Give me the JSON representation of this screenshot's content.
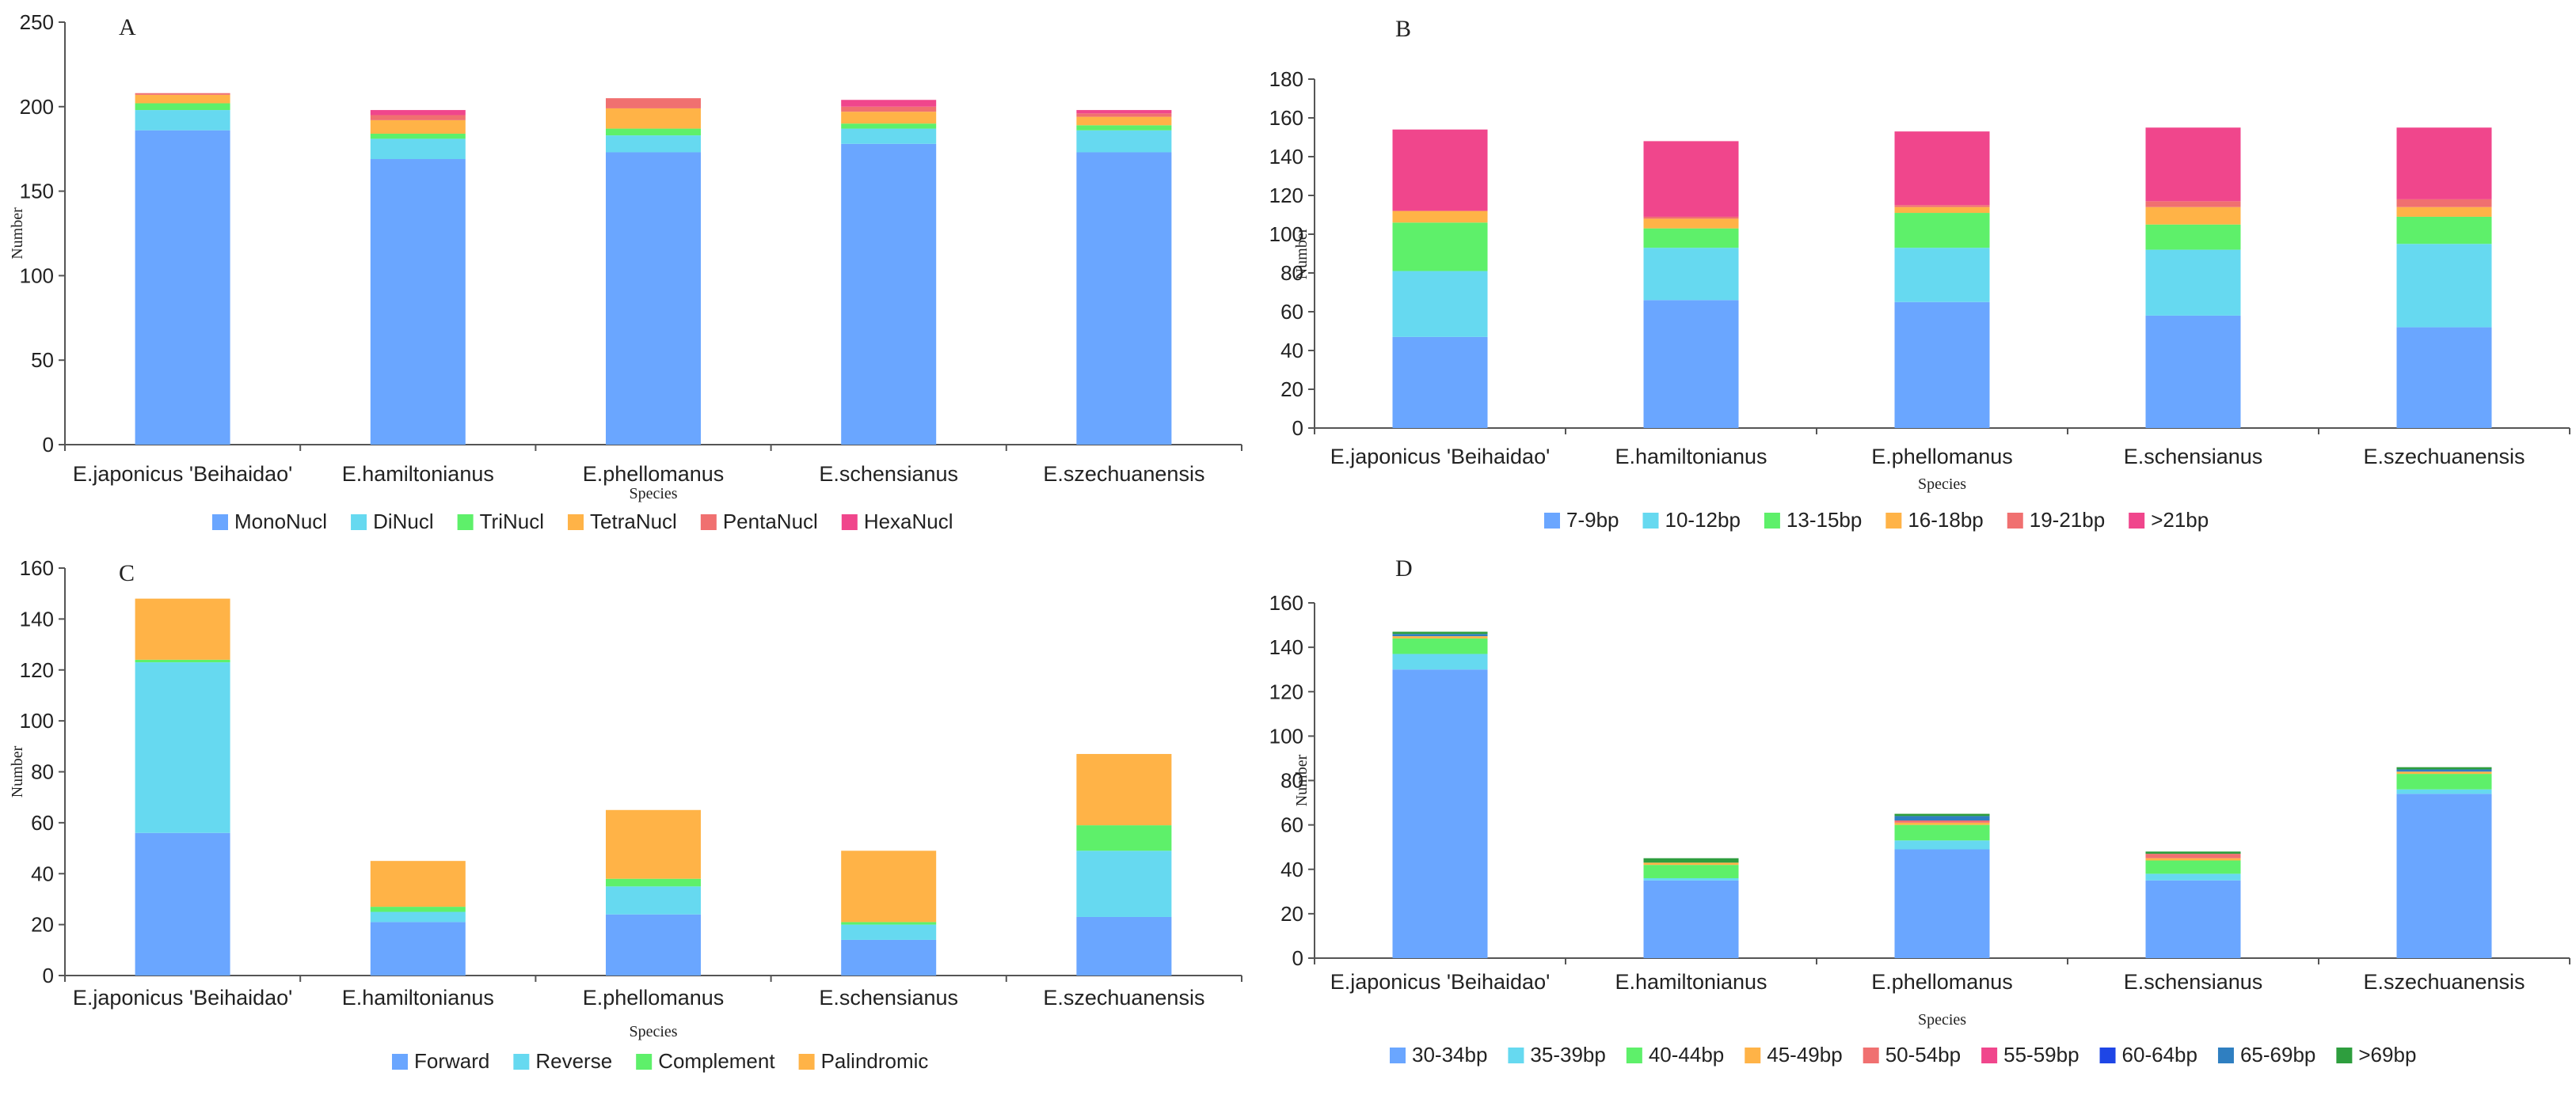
{
  "chart_data": [
    {
      "panel": "A",
      "type": "bar",
      "stacked": true,
      "title": "",
      "xlabel": "Species",
      "ylabel": "Number",
      "ylim": [
        0,
        250
      ],
      "yticks": [
        0,
        50,
        100,
        150,
        200,
        250
      ],
      "legend_position": "bottom",
      "categories": [
        "E.japonicus 'Beihaidao'",
        "E.hamiltonianus",
        "E.phellomanus",
        "E.schensianus",
        "E.szechuanensis"
      ],
      "series": [
        {
          "name": "MonoNucl",
          "color": "#6aa6ff",
          "values": [
            186,
            169,
            173,
            178,
            173
          ]
        },
        {
          "name": "DiNucl",
          "color": "#66d9f0",
          "values": [
            12,
            12,
            10,
            9,
            13
          ]
        },
        {
          "name": "TriNucl",
          "color": "#5ef06a",
          "values": [
            4,
            3,
            4,
            3,
            3
          ]
        },
        {
          "name": "TetraNucl",
          "color": "#ffb347",
          "values": [
            5,
            8,
            12,
            7,
            5
          ]
        },
        {
          "name": "PentaNucl",
          "color": "#f07070",
          "values": [
            1,
            3,
            6,
            3,
            2
          ]
        },
        {
          "name": "HexaNucl",
          "color": "#f0468c",
          "values": [
            0,
            3,
            0,
            4,
            2
          ]
        }
      ]
    },
    {
      "panel": "B",
      "type": "bar",
      "stacked": true,
      "title": "",
      "xlabel": "Species",
      "ylabel": "Number",
      "ylim": [
        0,
        180
      ],
      "yticks": [
        0,
        20,
        40,
        60,
        80,
        100,
        120,
        140,
        160,
        180
      ],
      "legend_position": "bottom",
      "categories": [
        "E.japonicus 'Beihaidao'",
        "E.hamiltonianus",
        "E.phellomanus",
        "E.schensianus",
        "E.szechuanensis"
      ],
      "series": [
        {
          "name": "7-9bp",
          "color": "#6aa6ff",
          "values": [
            47,
            66,
            65,
            58,
            52
          ]
        },
        {
          "name": "10-12bp",
          "color": "#66d9f0",
          "values": [
            34,
            27,
            28,
            34,
            43
          ]
        },
        {
          "name": "13-15bp",
          "color": "#5ef06a",
          "values": [
            25,
            10,
            18,
            13,
            14
          ]
        },
        {
          "name": "16-18bp",
          "color": "#ffb347",
          "values": [
            6,
            5,
            3,
            9,
            5
          ]
        },
        {
          "name": "19-21bp",
          "color": "#f07070",
          "values": [
            0,
            1,
            1,
            3,
            4
          ]
        },
        {
          "name": ">21bp",
          "color": "#f0468c",
          "values": [
            42,
            39,
            38,
            38,
            37
          ]
        }
      ]
    },
    {
      "panel": "C",
      "type": "bar",
      "stacked": true,
      "title": "",
      "xlabel": "Species",
      "ylabel": "Number",
      "ylim": [
        0,
        160
      ],
      "yticks": [
        0,
        20,
        40,
        60,
        80,
        100,
        120,
        140,
        160
      ],
      "legend_position": "bottom",
      "categories": [
        "E.japonicus 'Beihaidao'",
        "E.hamiltonianus",
        "E.phellomanus",
        "E.schensianus",
        "E.szechuanensis"
      ],
      "series": [
        {
          "name": "Forward",
          "color": "#6aa6ff",
          "values": [
            56,
            21,
            24,
            14,
            23
          ]
        },
        {
          "name": "Reverse",
          "color": "#66d9f0",
          "values": [
            67,
            4,
            11,
            6,
            26
          ]
        },
        {
          "name": "Complement",
          "color": "#5ef06a",
          "values": [
            1,
            2,
            3,
            1,
            10
          ]
        },
        {
          "name": "Palindromic",
          "color": "#ffb347",
          "values": [
            24,
            18,
            27,
            28,
            28
          ]
        }
      ]
    },
    {
      "panel": "D",
      "type": "bar",
      "stacked": true,
      "title": "",
      "xlabel": "Species",
      "ylabel": "Number",
      "ylim": [
        0,
        160
      ],
      "yticks": [
        0,
        20,
        40,
        60,
        80,
        100,
        120,
        140,
        160
      ],
      "legend_position": "bottom",
      "categories": [
        "E.japonicus 'Beihaidao'",
        "E.hamiltonianus",
        "E.phellomanus",
        "E.schensianus",
        "E.szechuanensis"
      ],
      "series": [
        {
          "name": "30-34bp",
          "color": "#6aa6ff",
          "values": [
            130,
            35,
            49,
            35,
            74
          ]
        },
        {
          "name": "35-39bp",
          "color": "#66d9f0",
          "values": [
            7,
            1,
            4,
            3,
            2
          ]
        },
        {
          "name": "40-44bp",
          "color": "#5ef06a",
          "values": [
            7,
            6,
            7,
            6,
            7
          ]
        },
        {
          "name": "45-49bp",
          "color": "#ffb347",
          "values": [
            1,
            1,
            1,
            1,
            1
          ]
        },
        {
          "name": "50-54bp",
          "color": "#f07070",
          "values": [
            0,
            0,
            1,
            2,
            0
          ]
        },
        {
          "name": "55-59bp",
          "color": "#f0468c",
          "values": [
            0,
            0,
            0,
            0,
            0
          ]
        },
        {
          "name": "60-64bp",
          "color": "#1e46e6",
          "values": [
            0,
            0,
            0,
            0,
            0
          ]
        },
        {
          "name": "65-69bp",
          "color": "#2f7fc1",
          "values": [
            1,
            0,
            2,
            0,
            1
          ]
        },
        {
          "name": ">69bp",
          "color": "#2e9e3e",
          "values": [
            1,
            2,
            1,
            1,
            1
          ]
        }
      ]
    }
  ]
}
